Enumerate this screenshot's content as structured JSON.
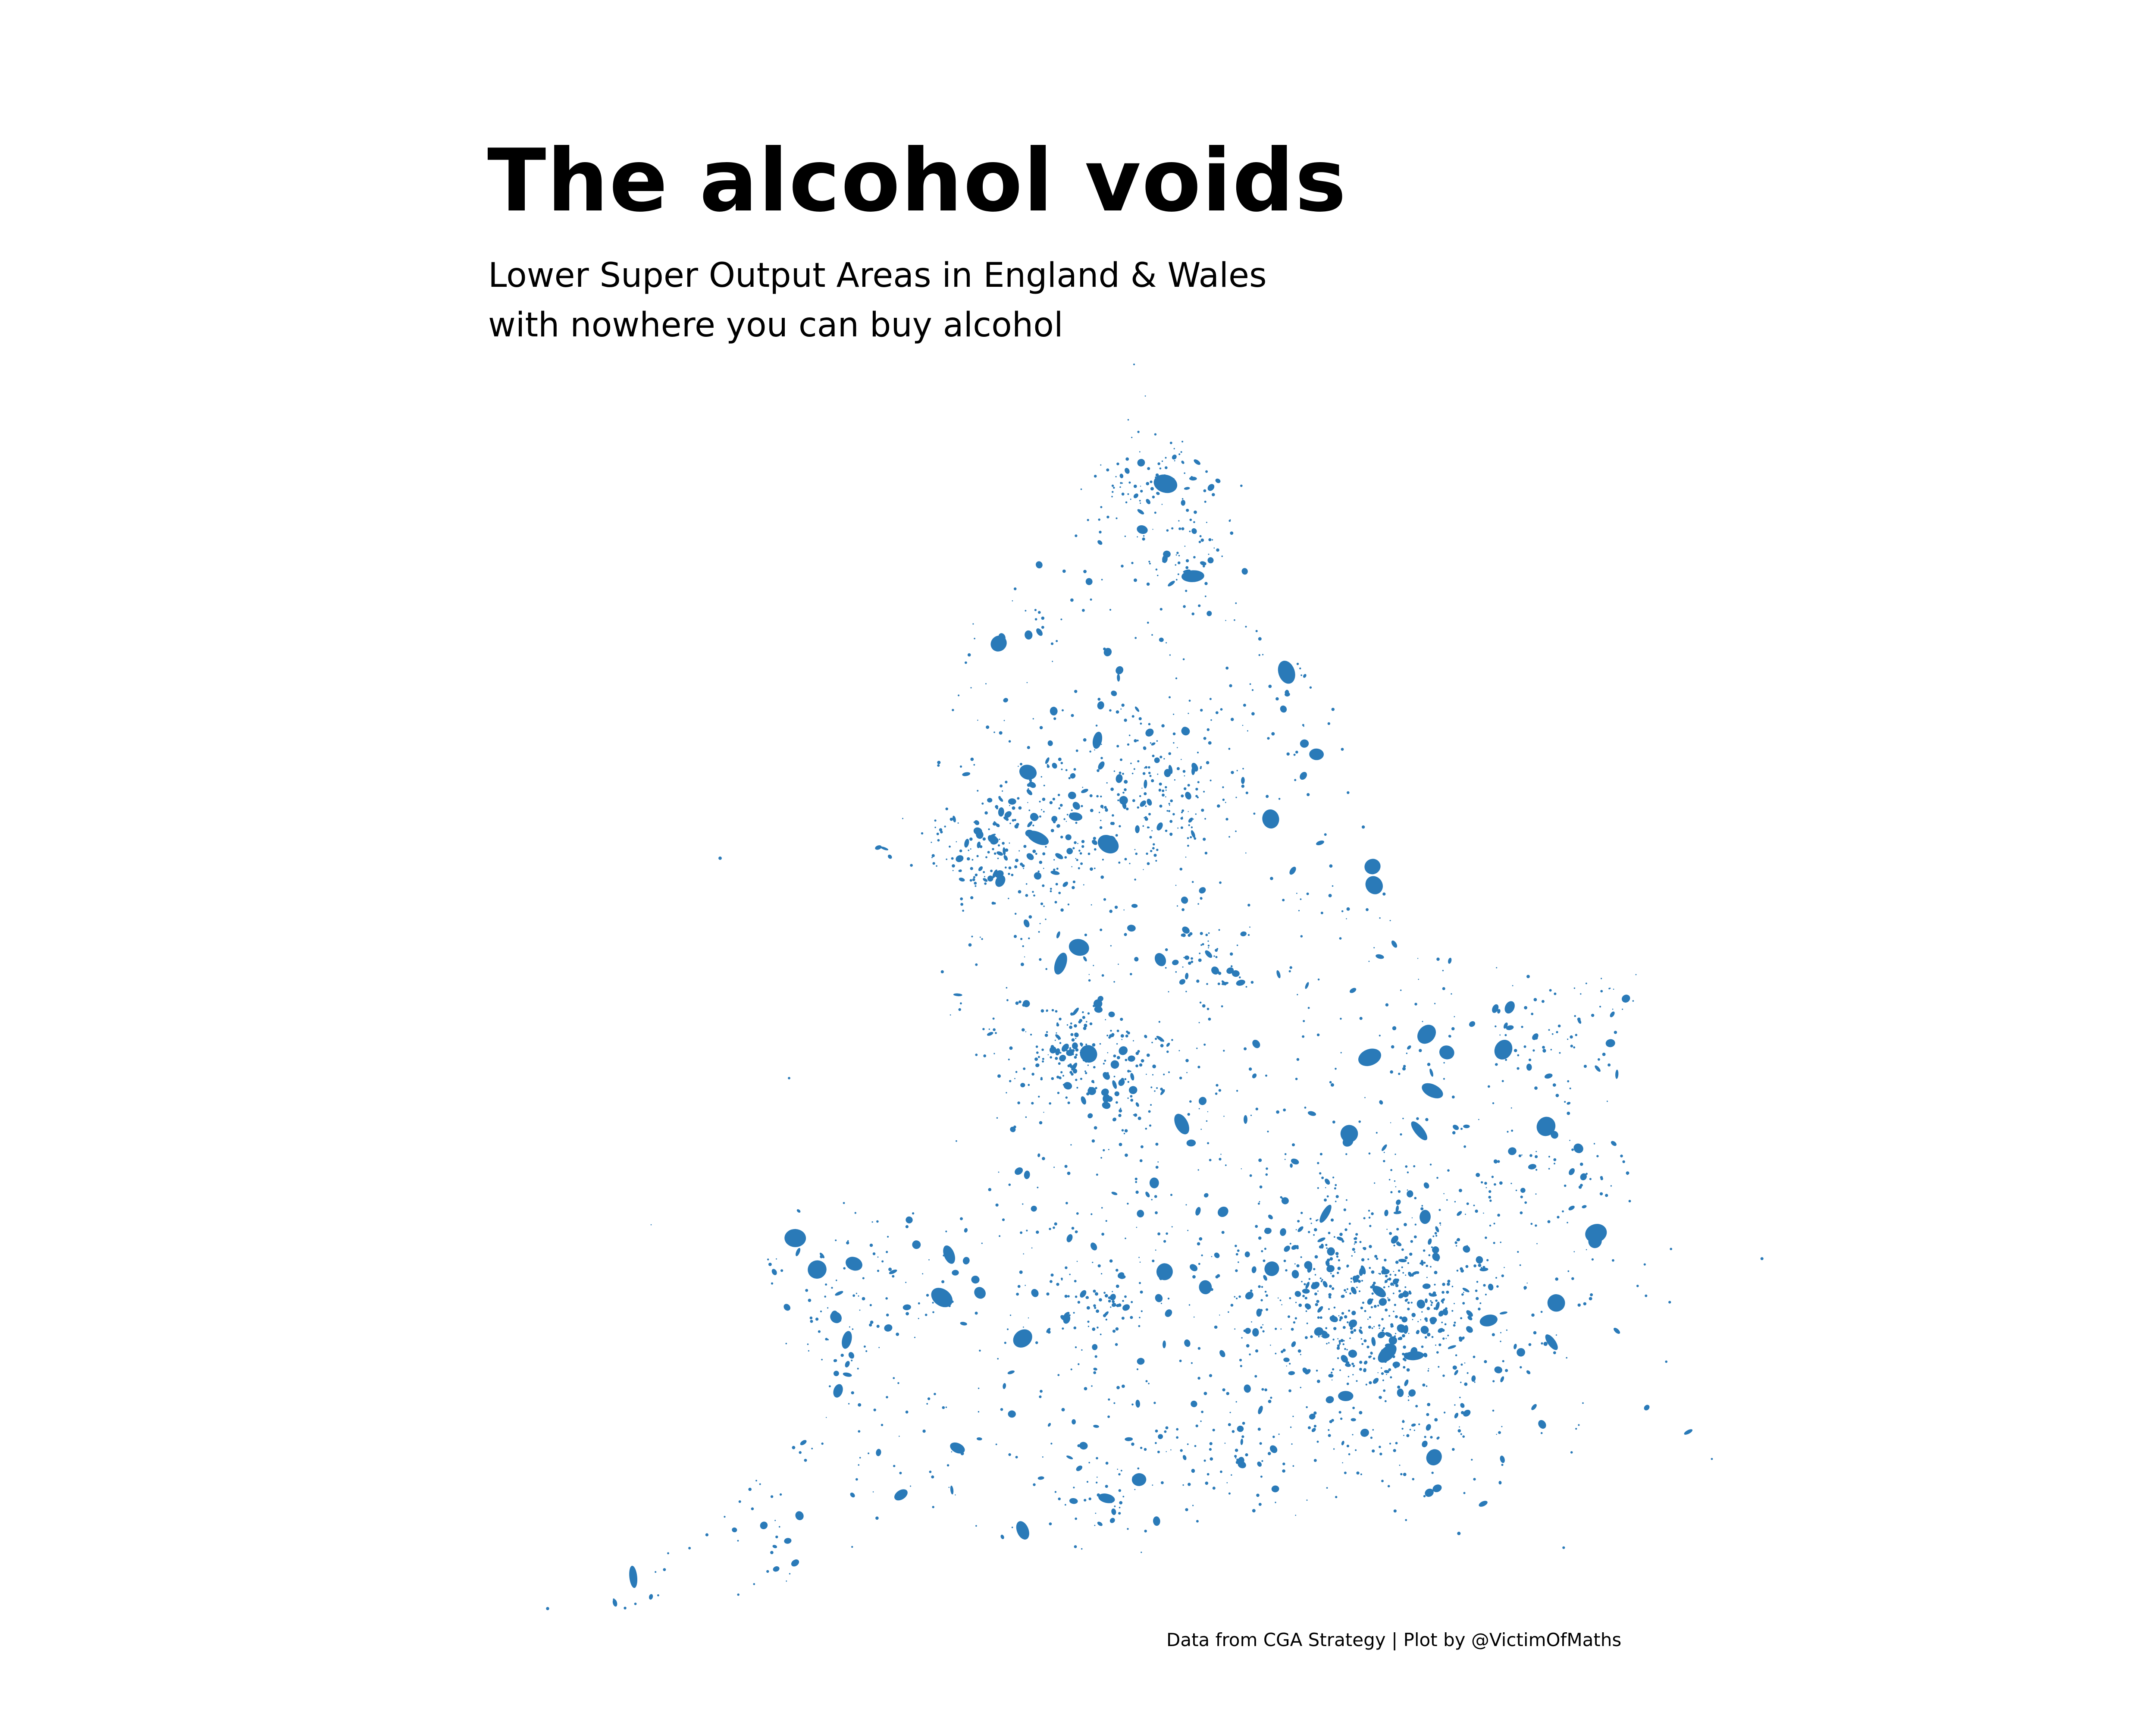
{
  "title": "The alcohol voids",
  "subtitle": {
    "line1": "Lower Super Output Areas in England & Wales",
    "line2": "with nowhere you can buy alcohol"
  },
  "credit": "Data from CGA Strategy | Plot by @VictimOfMaths",
  "colors": {
    "fill": "#2a7ab8",
    "background": "#ffffff",
    "text": "#000000"
  },
  "map": {
    "region": "England & Wales",
    "feature_type": "Lower Super Output Areas",
    "highlight": "LSOAs with nowhere you can buy alcohol"
  }
}
